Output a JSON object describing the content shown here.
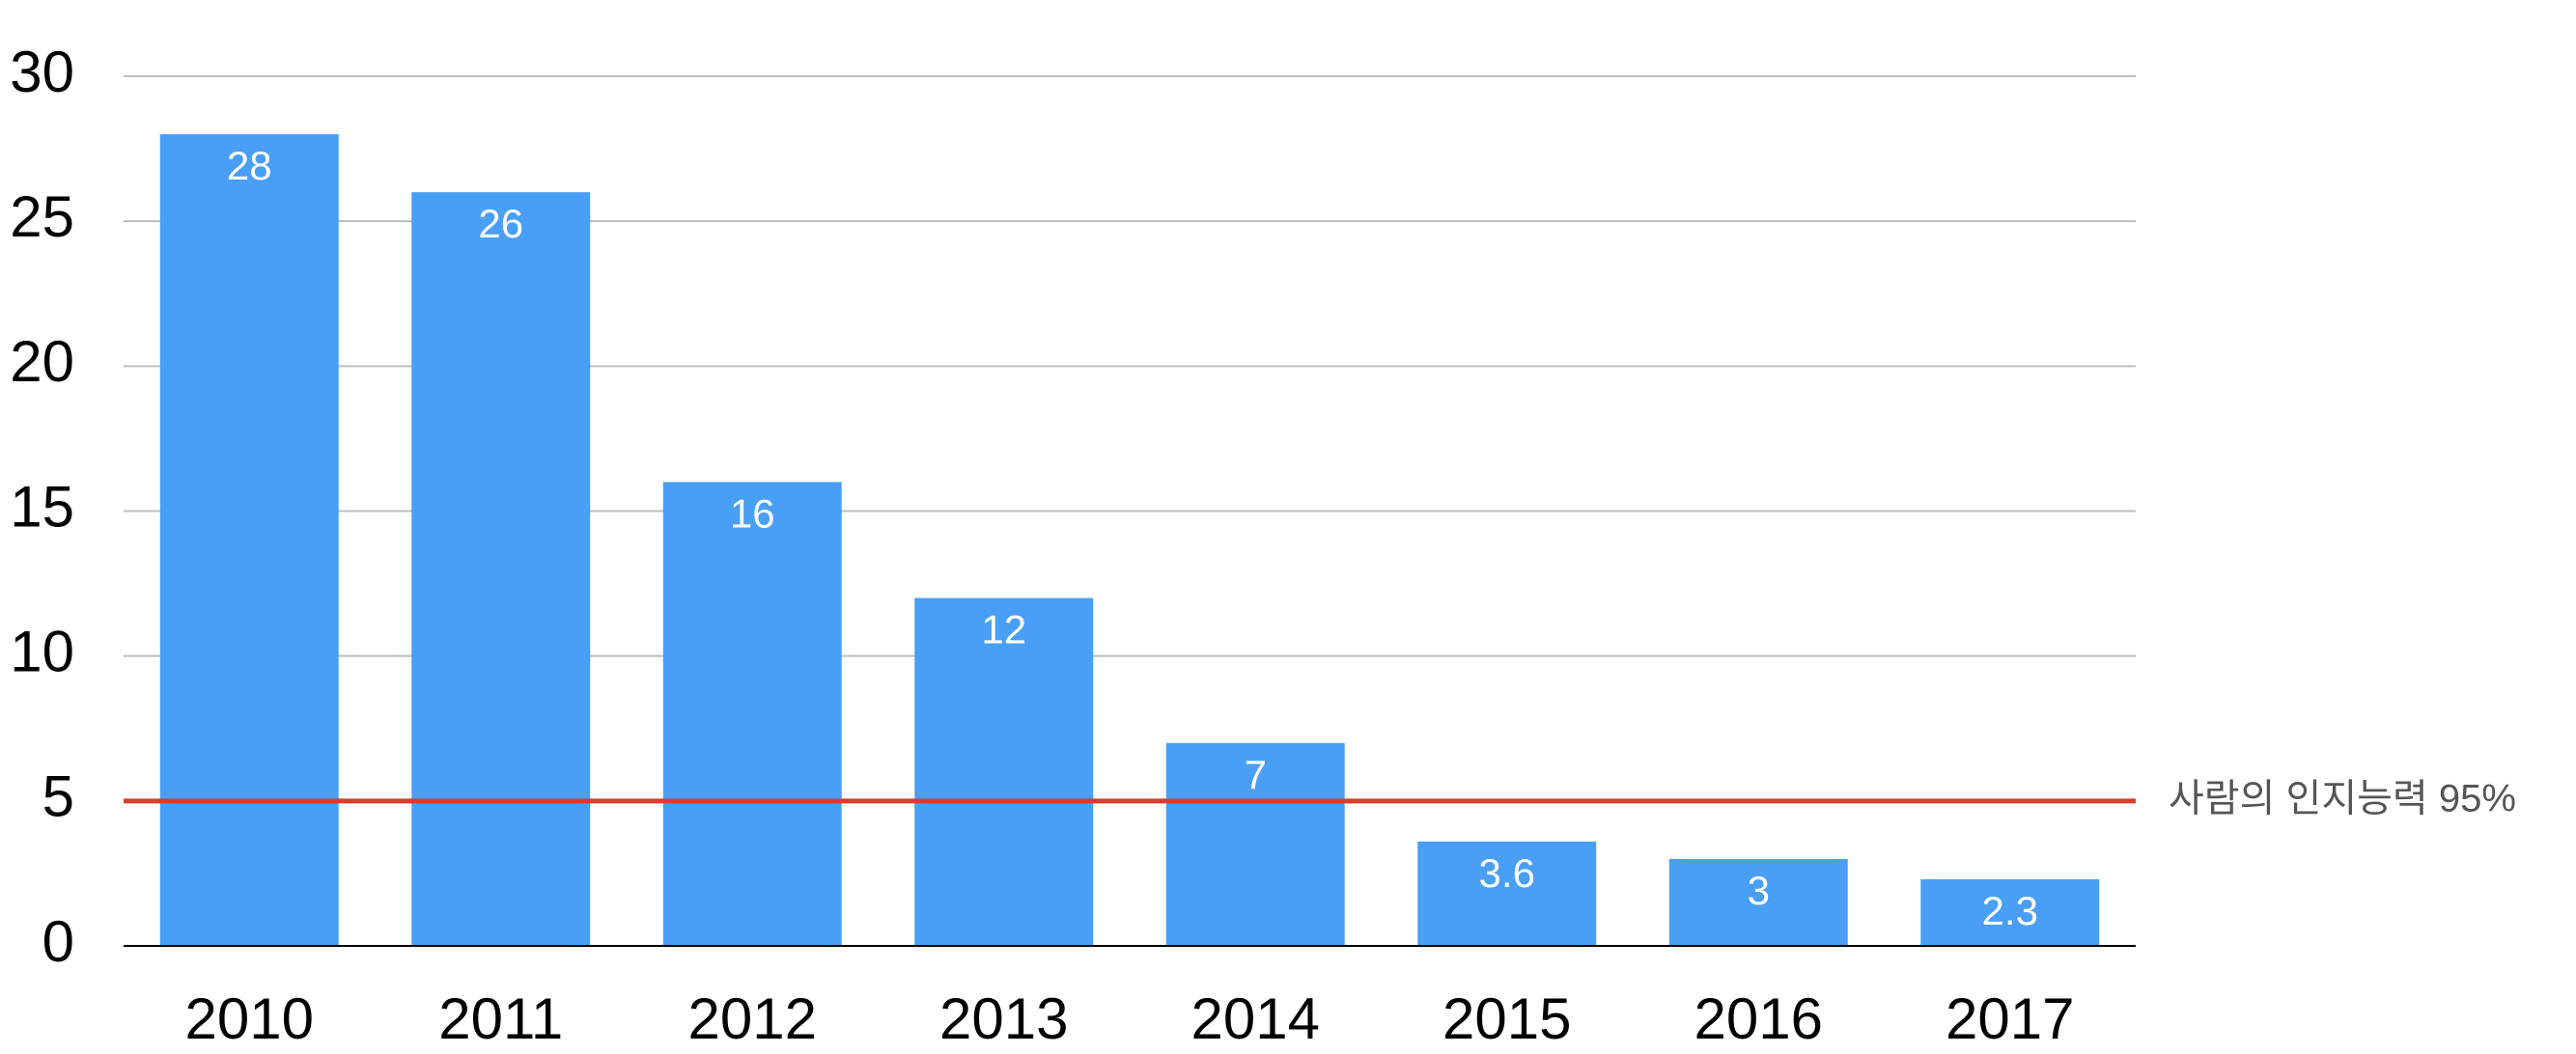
{
  "chart_data": {
    "type": "bar",
    "categories": [
      "2010",
      "2011",
      "2012",
      "2013",
      "2014",
      "2015",
      "2016",
      "2017"
    ],
    "values": [
      28,
      26,
      16,
      12,
      7,
      3.6,
      3,
      2.3
    ],
    "color": "#499ff5",
    "ylim": [
      0,
      30
    ],
    "yticks": [
      0,
      5,
      10,
      15,
      20,
      25,
      30
    ],
    "grid": true,
    "reference_line": {
      "value": 5,
      "label": "사람의 인지능력 95%",
      "color": "#dc3b2d"
    }
  }
}
